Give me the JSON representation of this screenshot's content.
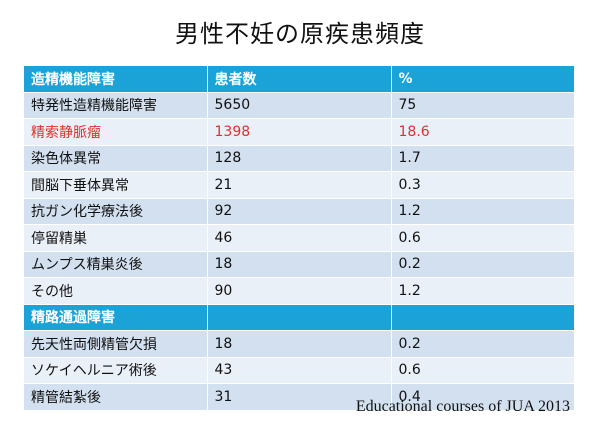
{
  "title": "男性不妊の原疾患頻度",
  "table": {
    "header": [
      "造精機能障害",
      "患者数",
      "%"
    ],
    "group1_rows": [
      {
        "cause": "特発性造精機能障害",
        "count": "5650",
        "percent": "75"
      },
      {
        "cause": "精索静脈瘤",
        "count": "1398",
        "percent": "18.6"
      },
      {
        "cause": "染色体異常",
        "count": "128",
        "percent": "1.7"
      },
      {
        "cause": "間脳下垂体異常",
        "count": "21",
        "percent": "0.3"
      },
      {
        "cause": "抗ガン化学療法後",
        "count": "92",
        "percent": "1.2"
      },
      {
        "cause": "停留精巣",
        "count": "46",
        "percent": "0.6"
      },
      {
        "cause": "ムンプス精巣炎後",
        "count": "18",
        "percent": "0.2"
      },
      {
        "cause": "その他",
        "count": "90",
        "percent": "1.2"
      }
    ],
    "section2_label": "精路通過障害",
    "group2_rows": [
      {
        "cause": "先天性両側精管欠損",
        "count": "18",
        "percent": "0.2"
      },
      {
        "cause": "ソケイヘルニア術後",
        "count": "43",
        "percent": "0.6"
      },
      {
        "cause": "精管結紮後",
        "count": "31",
        "percent": "0.4"
      }
    ],
    "highlight_color": "#e0302e",
    "header_color": "#1ba3d8"
  },
  "source": "Educational courses of JUA 2013"
}
